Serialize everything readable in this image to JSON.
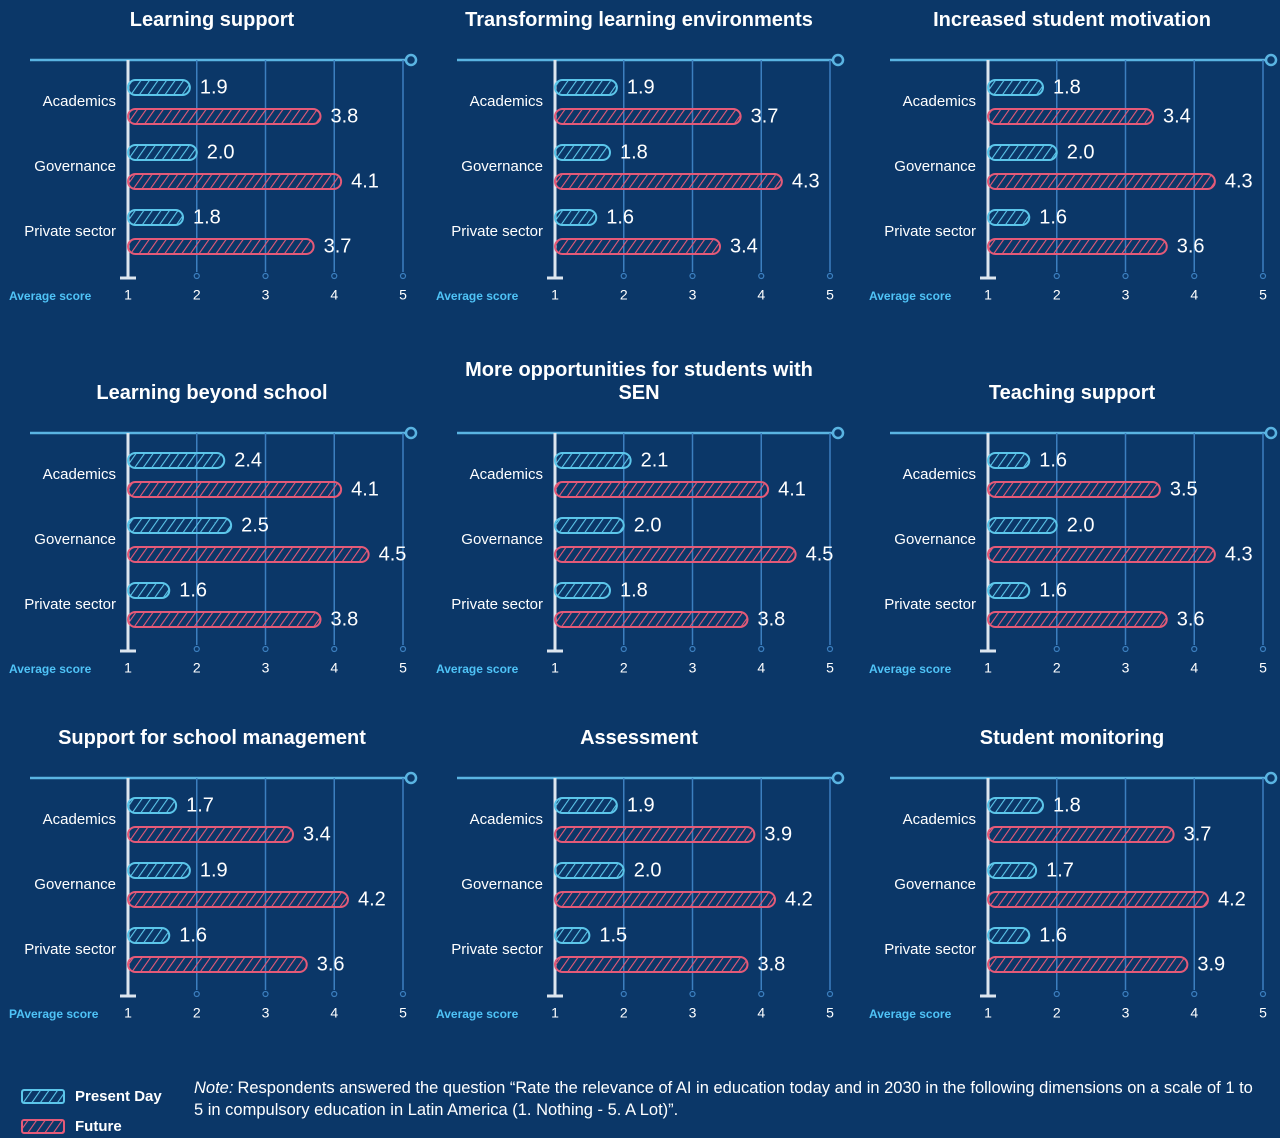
{
  "chart_data": [
    {
      "type": "bar",
      "title": "Learning support",
      "categories": [
        "Academics",
        "Governance",
        "Private sector"
      ],
      "xlabel": "Average score",
      "xlim": [
        1,
        5
      ],
      "xticks": [
        1,
        2,
        3,
        4,
        5
      ],
      "series": [
        {
          "values": [
            1.9,
            2.0,
            1.8
          ],
          "value_labels": [
            "1.9",
            "2.0",
            "1.8"
          ]
        },
        {
          "values": [
            3.8,
            4.1,
            3.7
          ],
          "value_labels": [
            "3.8",
            "4.1",
            "3.7"
          ]
        }
      ]
    },
    {
      "type": "bar",
      "title": "Transforming learning environments",
      "categories": [
        "Academics",
        "Governance",
        "Private sector"
      ],
      "xlabel": "Average score",
      "xlim": [
        1,
        5
      ],
      "xticks": [
        1,
        2,
        3,
        4,
        5
      ],
      "series": [
        {
          "values": [
            1.9,
            1.8,
            1.6
          ],
          "value_labels": [
            "1.9",
            "1.8",
            "1.6"
          ]
        },
        {
          "values": [
            3.7,
            4.3,
            3.4
          ],
          "value_labels": [
            "3.7",
            "4.3",
            "3.4"
          ]
        }
      ]
    },
    {
      "type": "bar",
      "title": "Increased student motivation",
      "categories": [
        "Academics",
        "Governance",
        "Private sector"
      ],
      "xlabel": "Average score",
      "xlim": [
        1,
        5
      ],
      "xticks": [
        1,
        2,
        3,
        4,
        5
      ],
      "series": [
        {
          "values": [
            1.8,
            2.0,
            1.6
          ],
          "value_labels": [
            "1.8",
            "2.0",
            "1.6"
          ]
        },
        {
          "values": [
            3.4,
            4.3,
            3.6
          ],
          "value_labels": [
            "3.4",
            "4.3",
            "3.6"
          ]
        }
      ]
    },
    {
      "type": "bar",
      "title": "Learning beyond school",
      "categories": [
        "Academics",
        "Governance",
        "Private sector"
      ],
      "xlabel": "Average score",
      "xlim": [
        1,
        5
      ],
      "xticks": [
        1,
        2,
        3,
        4,
        5
      ],
      "series": [
        {
          "values": [
            2.4,
            2.5,
            1.6
          ],
          "value_labels": [
            "2.4",
            "2.5",
            "1.6"
          ]
        },
        {
          "values": [
            4.1,
            4.5,
            3.8
          ],
          "value_labels": [
            "4.1",
            "4.5",
            "3.8"
          ]
        }
      ]
    },
    {
      "type": "bar",
      "title": "More opportunities for students with SEN",
      "categories": [
        "Academics",
        "Governance",
        "Private sector"
      ],
      "xlabel": "Average score",
      "xlim": [
        1,
        5
      ],
      "xticks": [
        1,
        2,
        3,
        4,
        5
      ],
      "series": [
        {
          "values": [
            2.1,
            2.0,
            1.8
          ],
          "value_labels": [
            "2.1",
            "2.0",
            "1.8"
          ]
        },
        {
          "values": [
            4.1,
            4.5,
            3.8
          ],
          "value_labels": [
            "4.1",
            "4.5",
            "3.8"
          ]
        }
      ]
    },
    {
      "type": "bar",
      "title": "Teaching support",
      "categories": [
        "Academics",
        "Governance",
        "Private sector"
      ],
      "xlabel": "Average score",
      "xlim": [
        1,
        5
      ],
      "xticks": [
        1,
        2,
        3,
        4,
        5
      ],
      "series": [
        {
          "values": [
            1.6,
            2.0,
            1.6
          ],
          "value_labels": [
            "1.6",
            "2.0",
            "1.6"
          ]
        },
        {
          "values": [
            3.5,
            4.3,
            3.6
          ],
          "value_labels": [
            "3.5",
            "4.3",
            "3.6"
          ]
        }
      ]
    },
    {
      "type": "bar",
      "title": "Support for school management",
      "categories": [
        "Academics",
        "Governance",
        "Private sector"
      ],
      "xlabel": "PAverage score",
      "xlim": [
        1,
        5
      ],
      "xticks": [
        1,
        2,
        3,
        4,
        5
      ],
      "series": [
        {
          "values": [
            1.7,
            1.9,
            1.6
          ],
          "value_labels": [
            "1.7",
            "1.9",
            "1.6"
          ]
        },
        {
          "values": [
            3.4,
            4.2,
            3.6
          ],
          "value_labels": [
            "3.4",
            "4.2",
            "3.6"
          ]
        }
      ]
    },
    {
      "type": "bar",
      "title": "Assessment",
      "categories": [
        "Academics",
        "Governance",
        "Private sector"
      ],
      "xlabel": "Average score",
      "xlim": [
        1,
        5
      ],
      "xticks": [
        1,
        2,
        3,
        4,
        5
      ],
      "series": [
        {
          "values": [
            1.9,
            2.0,
            1.5
          ],
          "value_labels": [
            "1.9",
            "2.0",
            "1.5"
          ]
        },
        {
          "values": [
            3.9,
            4.2,
            3.8
          ],
          "value_labels": [
            "3.9",
            "4.2",
            "3.8"
          ]
        }
      ]
    },
    {
      "type": "bar",
      "title": "Student monitoring",
      "categories": [
        "Academics",
        "Governance",
        "Private sector"
      ],
      "xlabel": "Average score",
      "xlim": [
        1,
        5
      ],
      "xticks": [
        1,
        2,
        3,
        4,
        5
      ],
      "series": [
        {
          "values": [
            1.8,
            1.7,
            1.6
          ],
          "value_labels": [
            "1.8",
            "1.7",
            "1.6"
          ]
        },
        {
          "values": [
            3.7,
            4.2,
            3.9
          ],
          "value_labels": [
            "3.7",
            "4.2",
            "3.9"
          ]
        }
      ]
    }
  ],
  "legend": [
    {
      "name": "Present Day",
      "color": "#5cc6ea"
    },
    {
      "name": "Future",
      "color": "#e45a78"
    }
  ],
  "note": {
    "label": "Note:",
    "text": "Respondents answered the question “Rate the relevance of AI in education today and in 2030 in the following dimensions on a scale of 1 to 5 in compulsory education in Latin America (1. Nothing - 5. A Lot)”."
  }
}
